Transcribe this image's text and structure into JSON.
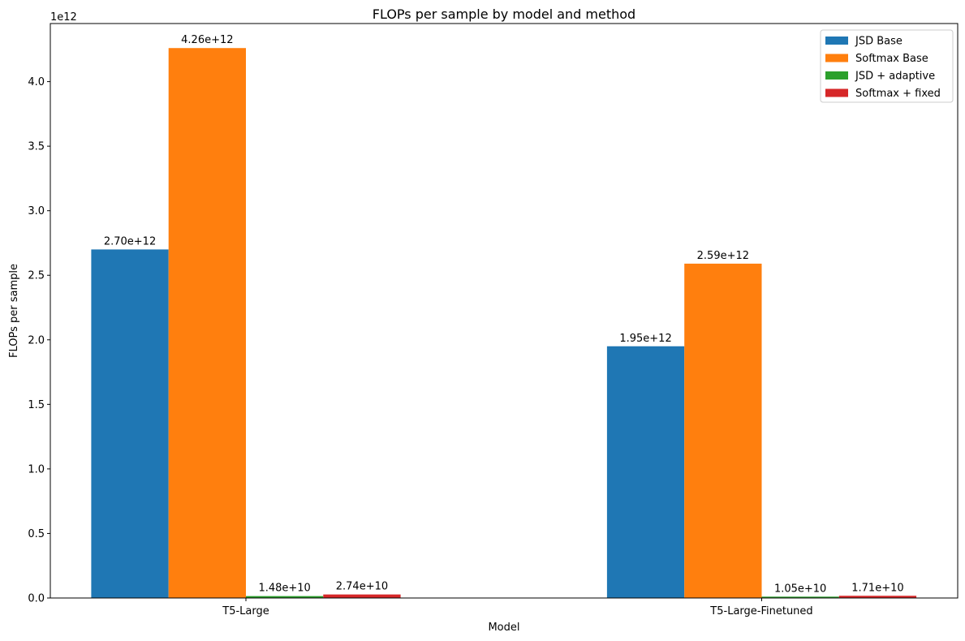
{
  "chart_data": {
    "type": "bar",
    "title": "FLOPs per sample by model and method",
    "xlabel": "Model",
    "ylabel": "FLOPs per sample",
    "y_offset_label": "1e12",
    "y_scale": 1000000000000.0,
    "ylim": [
      0,
      4.45
    ],
    "yticks": [
      0.0,
      0.5,
      1.0,
      1.5,
      2.0,
      2.5,
      3.0,
      3.5,
      4.0
    ],
    "ytick_labels": [
      "0.0",
      "0.5",
      "1.0",
      "1.5",
      "2.0",
      "2.5",
      "3.0",
      "3.5",
      "4.0"
    ],
    "categories": [
      "T5-Large",
      "T5-Large-Finetuned"
    ],
    "legend_position": "top-right",
    "grid": false,
    "series": [
      {
        "name": "JSD Base",
        "color": "#1f77b4",
        "values": [
          2.7,
          1.95
        ],
        "labels": [
          "2.70e+12",
          "1.95e+12"
        ]
      },
      {
        "name": "Softmax Base",
        "color": "#ff7f0e",
        "values": [
          4.26,
          2.59
        ],
        "labels": [
          "4.26e+12",
          "2.59e+12"
        ]
      },
      {
        "name": "JSD + adaptive",
        "color": "#2ca02c",
        "values": [
          0.0148,
          0.0105
        ],
        "labels": [
          "1.48e+10",
          "1.05e+10"
        ]
      },
      {
        "name": "Softmax + fixed",
        "color": "#d62728",
        "values": [
          0.0274,
          0.0171
        ],
        "labels": [
          "2.74e+10",
          "1.71e+10"
        ]
      }
    ]
  }
}
